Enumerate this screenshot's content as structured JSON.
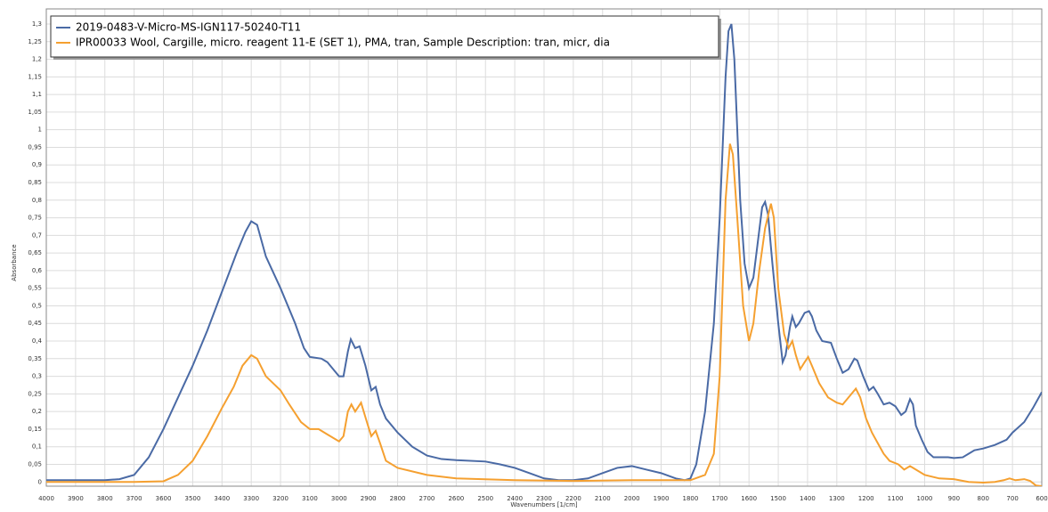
{
  "chart_data": {
    "type": "line",
    "xlabel": "Wavenumbers [1/cm]",
    "ylabel": "Absorbance",
    "xlim": [
      4000,
      600
    ],
    "ylim": [
      -0.012,
      1.343
    ],
    "grid": true,
    "legend": "upper left",
    "xticks": [
      4000,
      3900,
      3800,
      3700,
      3600,
      3500,
      3400,
      3300,
      3200,
      3100,
      3000,
      2900,
      2800,
      2700,
      2600,
      2500,
      2400,
      2300,
      2200,
      2100,
      2000,
      1900,
      1800,
      1700,
      1600,
      1500,
      1400,
      1300,
      1200,
      1100,
      1000,
      900,
      800,
      700,
      600
    ],
    "yticks": [
      0,
      {
        "value": 0.05,
        "label": "0,05"
      },
      {
        "value": 0.1,
        "label": "0,1"
      },
      {
        "value": 0.15,
        "label": "0,15"
      },
      {
        "value": 0.2,
        "label": "0,2"
      },
      {
        "value": 0.25,
        "label": "0,25"
      },
      {
        "value": 0.3,
        "label": "0,3"
      },
      {
        "value": 0.35,
        "label": "0,35"
      },
      {
        "value": 0.4,
        "label": "0,4"
      },
      {
        "value": 0.45,
        "label": "0,45"
      },
      {
        "value": 0.5,
        "label": "0,5"
      },
      {
        "value": 0.55,
        "label": "0,55"
      },
      {
        "value": 0.6,
        "label": "0,6"
      },
      {
        "value": 0.65,
        "label": "0,65"
      },
      {
        "value": 0.7,
        "label": "0,7"
      },
      {
        "value": 0.75,
        "label": "0,75"
      },
      {
        "value": 0.8,
        "label": "0,8"
      },
      {
        "value": 0.85,
        "label": "0,85"
      },
      {
        "value": 0.9,
        "label": "0,9"
      },
      {
        "value": 0.95,
        "label": "0,95"
      },
      1,
      {
        "value": 1.05,
        "label": "1,05"
      },
      {
        "value": 1.1,
        "label": "1,1"
      },
      {
        "value": 1.15,
        "label": "1,15"
      },
      {
        "value": 1.2,
        "label": "1,2"
      },
      {
        "value": 1.25,
        "label": "1,25"
      },
      {
        "value": 1.3,
        "label": "1,3"
      }
    ],
    "series": [
      {
        "name": "2019-0483-V-Micro-MS-IGN117-50240-T11",
        "color": "#4a6aa5",
        "x": [
          4000,
          3800,
          3750,
          3700,
          3650,
          3600,
          3550,
          3500,
          3450,
          3400,
          3350,
          3320,
          3300,
          3280,
          3250,
          3200,
          3150,
          3120,
          3100,
          3060,
          3040,
          3000,
          2985,
          2970,
          2960,
          2945,
          2930,
          2910,
          2890,
          2875,
          2860,
          2840,
          2800,
          2750,
          2700,
          2650,
          2600,
          2500,
          2450,
          2400,
          2350,
          2300,
          2250,
          2200,
          2150,
          2100,
          2050,
          2000,
          1950,
          1900,
          1850,
          1820,
          1800,
          1780,
          1750,
          1720,
          1700,
          1690,
          1680,
          1670,
          1660,
          1650,
          1640,
          1630,
          1615,
          1600,
          1585,
          1570,
          1555,
          1545,
          1535,
          1520,
          1500,
          1485,
          1475,
          1460,
          1452,
          1440,
          1430,
          1410,
          1395,
          1385,
          1370,
          1350,
          1320,
          1300,
          1280,
          1260,
          1240,
          1230,
          1210,
          1190,
          1175,
          1160,
          1140,
          1120,
          1100,
          1080,
          1065,
          1050,
          1040,
          1030,
          1010,
          990,
          970,
          950,
          920,
          900,
          870,
          850,
          830,
          800,
          760,
          720,
          700,
          660,
          630,
          600
        ],
        "values": [
          0.005,
          0.005,
          0.008,
          0.02,
          0.07,
          0.15,
          0.24,
          0.33,
          0.43,
          0.54,
          0.65,
          0.71,
          0.74,
          0.73,
          0.64,
          0.55,
          0.45,
          0.38,
          0.355,
          0.35,
          0.34,
          0.3,
          0.3,
          0.37,
          0.405,
          0.38,
          0.385,
          0.33,
          0.26,
          0.27,
          0.22,
          0.18,
          0.14,
          0.1,
          0.075,
          0.065,
          0.062,
          0.058,
          0.05,
          0.04,
          0.025,
          0.01,
          0.005,
          0.005,
          0.01,
          0.025,
          0.04,
          0.045,
          0.035,
          0.025,
          0.01,
          0.005,
          0.01,
          0.05,
          0.2,
          0.45,
          0.75,
          0.95,
          1.15,
          1.28,
          1.3,
          1.2,
          1.0,
          0.8,
          0.62,
          0.55,
          0.58,
          0.68,
          0.78,
          0.795,
          0.76,
          0.62,
          0.45,
          0.34,
          0.36,
          0.44,
          0.47,
          0.44,
          0.45,
          0.48,
          0.485,
          0.47,
          0.43,
          0.4,
          0.395,
          0.35,
          0.31,
          0.32,
          0.35,
          0.345,
          0.3,
          0.26,
          0.27,
          0.25,
          0.22,
          0.225,
          0.215,
          0.19,
          0.2,
          0.235,
          0.22,
          0.16,
          0.12,
          0.085,
          0.07,
          0.07,
          0.07,
          0.068,
          0.07,
          0.08,
          0.09,
          0.095,
          0.105,
          0.12,
          0.14,
          0.17,
          0.21,
          0.255
        ]
      },
      {
        "name": "IPR00033 Wool, Cargille, micro. reagent  11-E (SET 1), PMA, tran, Sample Description: tran, micr, dia",
        "color": "#f5a030",
        "x": [
          4000,
          3700,
          3600,
          3550,
          3500,
          3450,
          3400,
          3360,
          3330,
          3300,
          3280,
          3250,
          3200,
          3170,
          3130,
          3100,
          3070,
          3040,
          3000,
          2985,
          2970,
          2958,
          2945,
          2925,
          2905,
          2890,
          2875,
          2860,
          2840,
          2800,
          2700,
          2600,
          2400,
          2200,
          2000,
          1800,
          1750,
          1720,
          1700,
          1690,
          1680,
          1665,
          1655,
          1640,
          1620,
          1600,
          1585,
          1565,
          1545,
          1525,
          1515,
          1500,
          1480,
          1465,
          1452,
          1440,
          1425,
          1410,
          1398,
          1385,
          1360,
          1330,
          1300,
          1280,
          1250,
          1235,
          1220,
          1200,
          1180,
          1160,
          1140,
          1120,
          1090,
          1070,
          1050,
          1030,
          1000,
          950,
          900,
          850,
          800,
          760,
          730,
          710,
          690,
          660,
          640,
          620,
          600
        ],
        "values": [
          0,
          0,
          0.002,
          0.02,
          0.06,
          0.13,
          0.21,
          0.27,
          0.33,
          0.36,
          0.35,
          0.3,
          0.26,
          0.22,
          0.17,
          0.15,
          0.15,
          0.135,
          0.115,
          0.13,
          0.2,
          0.22,
          0.2,
          0.225,
          0.17,
          0.13,
          0.145,
          0.11,
          0.06,
          0.04,
          0.02,
          0.01,
          0.005,
          0.003,
          0.005,
          0.005,
          0.02,
          0.08,
          0.3,
          0.55,
          0.8,
          0.96,
          0.93,
          0.75,
          0.5,
          0.4,
          0.45,
          0.6,
          0.72,
          0.79,
          0.75,
          0.55,
          0.42,
          0.38,
          0.4,
          0.36,
          0.32,
          0.34,
          0.355,
          0.33,
          0.28,
          0.24,
          0.225,
          0.22,
          0.25,
          0.265,
          0.24,
          0.18,
          0.14,
          0.11,
          0.08,
          0.06,
          0.05,
          0.035,
          0.045,
          0.035,
          0.02,
          0.01,
          0.008,
          0,
          -0.002,
          0,
          0.005,
          0.01,
          0.005,
          0.008,
          0.003,
          -0.01,
          -0.012
        ]
      }
    ]
  }
}
